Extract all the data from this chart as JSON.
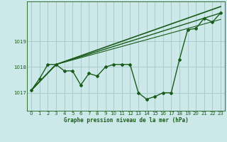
{
  "background_color": "#cce8e8",
  "grid_color": "#aacccc",
  "line_color": "#1a5c1a",
  "title": "Graphe pression niveau de la mer (hPa)",
  "xlim": [
    -0.5,
    23.5
  ],
  "ylim": [
    1016.3,
    1020.55
  ],
  "yticks": [
    1017,
    1018,
    1019
  ],
  "xticks": [
    0,
    1,
    2,
    3,
    4,
    5,
    6,
    7,
    8,
    9,
    10,
    11,
    12,
    13,
    14,
    15,
    16,
    17,
    18,
    19,
    20,
    21,
    22,
    23
  ],
  "series1": {
    "x": [
      0,
      1,
      2,
      3,
      4,
      5,
      6,
      7,
      8,
      9,
      10,
      11,
      12,
      13,
      14,
      15,
      16,
      17,
      18,
      19,
      20,
      21,
      22,
      23
    ],
    "y": [
      1017.1,
      1017.55,
      1018.1,
      1018.1,
      1017.85,
      1017.85,
      1017.3,
      1017.75,
      1017.65,
      1018.0,
      1018.1,
      1018.1,
      1018.1,
      1017.0,
      1016.75,
      1016.85,
      1017.0,
      1017.0,
      1018.3,
      1019.45,
      1019.5,
      1019.9,
      1019.75,
      1020.1
    ],
    "linewidth": 1.0,
    "marker": "D",
    "markersize": 2.0
  },
  "series2": {
    "x": [
      0,
      3,
      23
    ],
    "y": [
      1017.1,
      1018.1,
      1020.35
    ],
    "linewidth": 1.2
  },
  "series3": {
    "x": [
      0,
      3,
      23
    ],
    "y": [
      1017.1,
      1018.1,
      1020.1
    ],
    "linewidth": 1.0
  },
  "series4": {
    "x": [
      0,
      3,
      23
    ],
    "y": [
      1017.1,
      1018.1,
      1019.85
    ],
    "linewidth": 0.8
  }
}
